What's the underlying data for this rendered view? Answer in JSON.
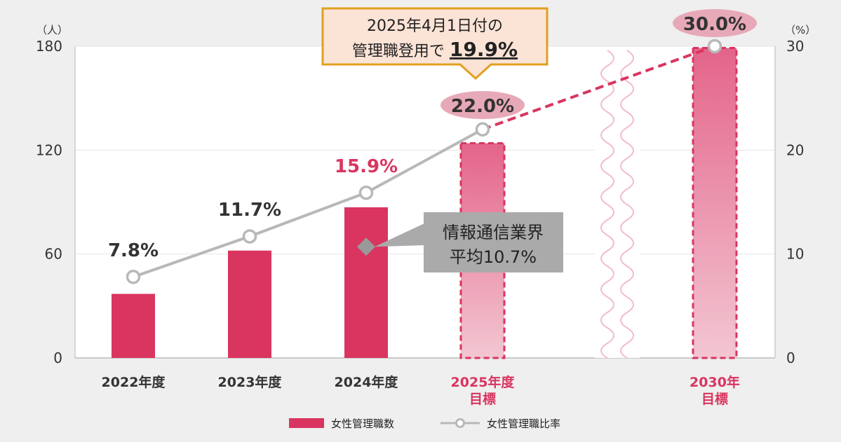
{
  "chart_data": {
    "type": "bar",
    "categories": [
      [
        "2022年度"
      ],
      [
        "2023年度"
      ],
      [
        "2024年度"
      ],
      [
        "2025年度",
        "目標"
      ],
      [
        "2030年",
        "目標"
      ]
    ],
    "series": [
      {
        "name": "女性管理職数",
        "type": "bar",
        "axis": "left",
        "values": [
          37,
          62,
          87,
          124,
          179
        ],
        "target_flags": [
          false,
          false,
          false,
          true,
          true
        ],
        "color": "#d93560"
      },
      {
        "name": "女性管理職比率",
        "type": "line",
        "axis": "right",
        "values": [
          7.8,
          11.7,
          15.9,
          22.0,
          30.0
        ],
        "labels": [
          "7.8%",
          "11.7%",
          "15.9%",
          "22.0%",
          "30.0%"
        ],
        "color": "#b8b8b8",
        "dashed_from_index": 3,
        "dashed_color": "#d93560"
      }
    ],
    "y_left": {
      "unit": "（人）",
      "ticks": [
        0,
        60,
        120,
        180
      ],
      "ylim": [
        0,
        180
      ]
    },
    "y_right": {
      "unit": "（%）",
      "ticks": [
        0,
        10,
        20,
        30
      ],
      "ylim": [
        0,
        30
      ]
    },
    "grid": true,
    "axis_break_after_index": 3,
    "annotations": {
      "benchmark": {
        "value": 10.7,
        "line1": "情報通信業界",
        "line2": "平均10.7%",
        "color": "#aaaaaa"
      },
      "callout": {
        "line1": "2025年4月1日付の",
        "line2_prefix": "管理職登用で",
        "line2_value": "19.9%",
        "border_color": "#e0a020",
        "fill_color": "#fbe3d6"
      }
    },
    "legend": {
      "position": "bottom-center"
    }
  }
}
